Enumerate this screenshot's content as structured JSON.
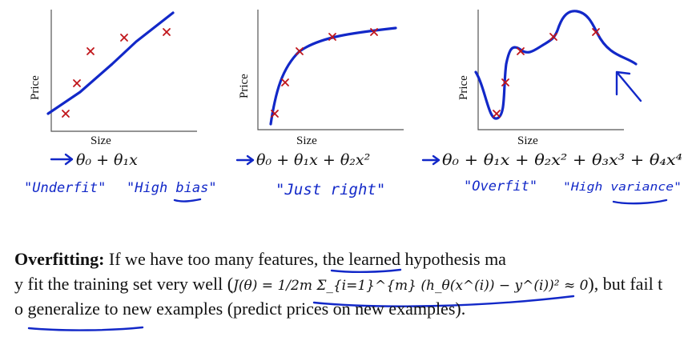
{
  "plots": [
    {
      "ylabel": "Price",
      "xlabel": "Size"
    },
    {
      "ylabel": "Price",
      "xlabel": "Size"
    },
    {
      "ylabel": "Price",
      "xlabel": "Size"
    }
  ],
  "formulas": {
    "linear": "θ₀ + θ₁x",
    "quadratic": "θ₀ + θ₁x + θ₂x²",
    "quartic": "θ₀ + θ₁x + θ₂x² + θ₃x³ + θ₄x⁴"
  },
  "annotations": {
    "underfit": "\"Underfit\"",
    "high_bias": "\"High bias\"",
    "just_right": "\"Just right\"",
    "overfit": "\"Overfit\"",
    "high_variance": "\"High variance\""
  },
  "paragraph": {
    "term": "Overfitting:",
    "line1_rest": "If we have too many features, the learned hypothesis ma",
    "line2_a": "y fit the training set very well (",
    "line2_math": "J(θ) = 1/2m Σ_{i=1}^{m} (h_θ(x^(i)) − y^(i))² ≈ 0",
    "line2_b": "), but fail t",
    "line3": "o generalize to new examples (predict prices on new examples)."
  }
}
